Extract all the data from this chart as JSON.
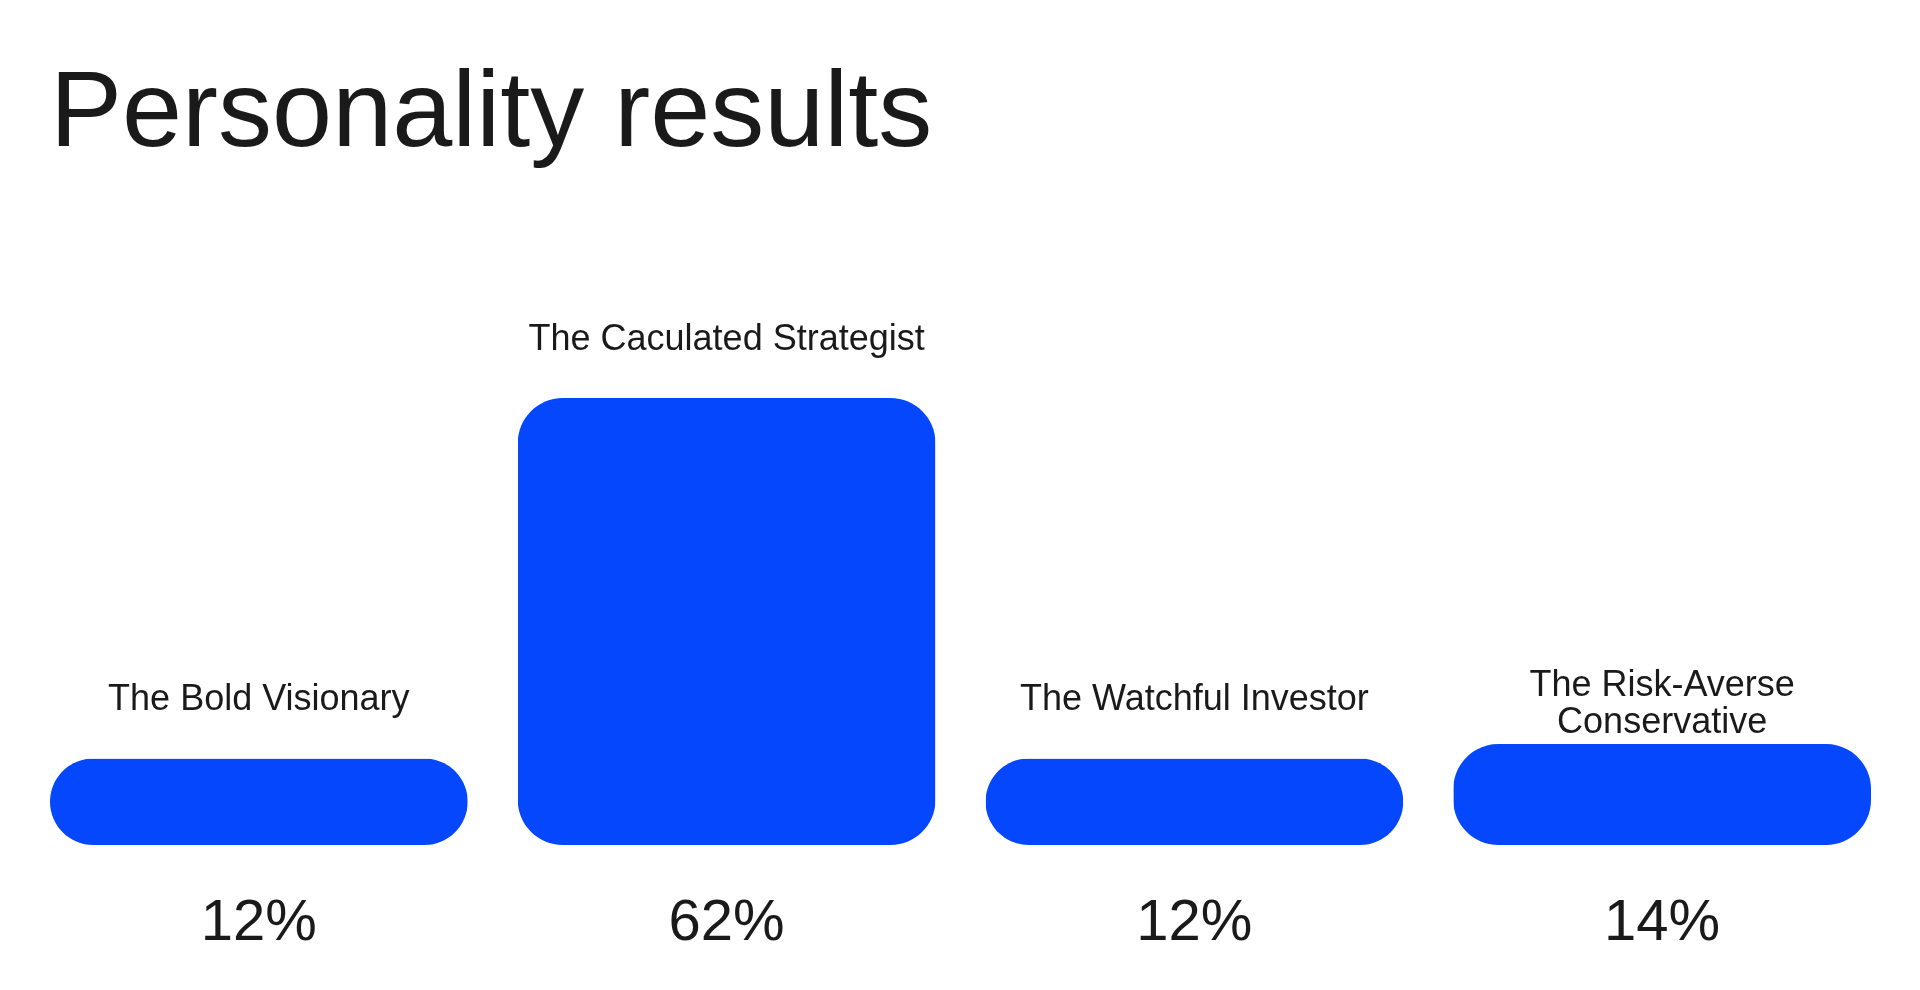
{
  "chart_data": {
    "type": "bar",
    "title": "Personality results",
    "categories": [
      "The Bold Visionary",
      "The Caculated Strategist",
      "The Watchful Investor",
      "The Risk-Averse Conservative"
    ],
    "values": [
      12,
      62,
      12,
      14
    ],
    "color": "#0447fc",
    "value_labels": [
      "12%",
      "62%",
      "12%",
      "14%"
    ],
    "tick_labels": "x"
  }
}
